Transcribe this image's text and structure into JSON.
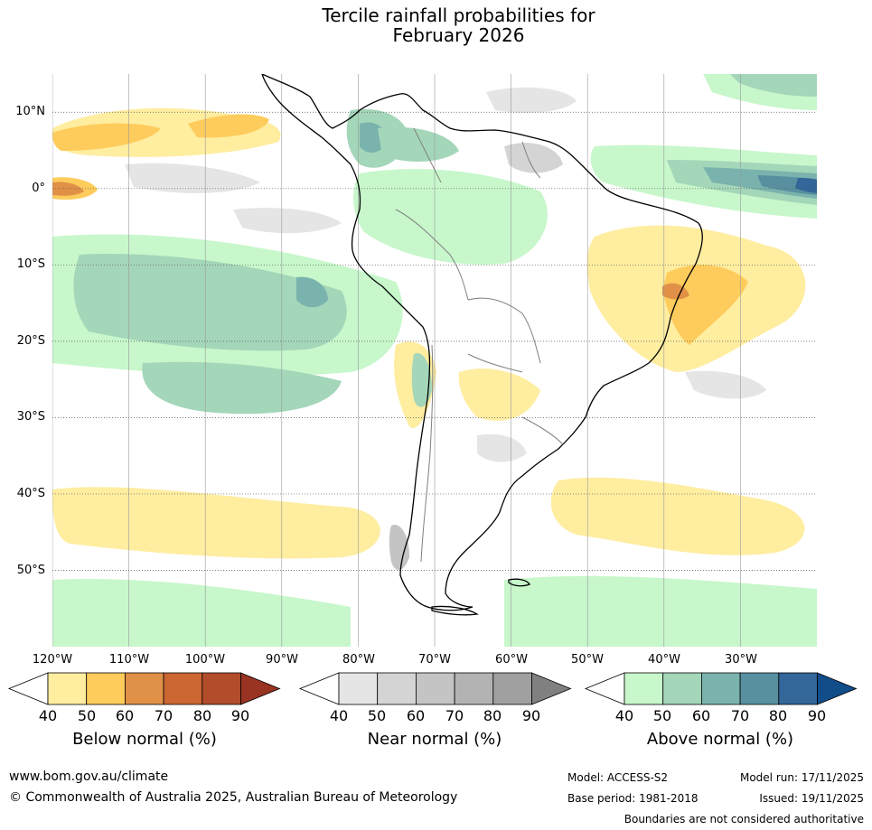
{
  "title": {
    "line1": "Tercile rainfall probabilities for",
    "line2": "February 2026"
  },
  "axes": {
    "latitudes": [
      {
        "label": "10°N",
        "value": 10
      },
      {
        "label": "0°",
        "value": 0
      },
      {
        "label": "10°S",
        "value": -10
      },
      {
        "label": "20°S",
        "value": -20
      },
      {
        "label": "30°S",
        "value": -30
      },
      {
        "label": "40°S",
        "value": -40
      },
      {
        "label": "50°S",
        "value": -50
      }
    ],
    "longitudes": [
      {
        "label": "120°W",
        "value": -120
      },
      {
        "label": "110°W",
        "value": -110
      },
      {
        "label": "100°W",
        "value": -100
      },
      {
        "label": "90°W",
        "value": -90
      },
      {
        "label": "80°W",
        "value": -80
      },
      {
        "label": "70°W",
        "value": -70
      },
      {
        "label": "60°W",
        "value": -60
      },
      {
        "label": "50°W",
        "value": -50
      },
      {
        "label": "40°W",
        "value": -40
      },
      {
        "label": "30°W",
        "value": -30
      }
    ],
    "lon_range": [
      -120,
      -20
    ],
    "lat_range": [
      -60,
      15
    ]
  },
  "colorbars": {
    "below": {
      "title": "Below normal (%)",
      "ticks": [
        "40",
        "50",
        "60",
        "70",
        "80",
        "90"
      ],
      "colors": [
        "#ffffff",
        "#ffeda0",
        "#fecc5c",
        "#e09147",
        "#cc6633",
        "#b24d2c",
        "#993322"
      ]
    },
    "near": {
      "title": "Near normal (%)",
      "ticks": [
        "40",
        "50",
        "60",
        "70",
        "80",
        "90"
      ],
      "colors": [
        "#ffffff",
        "#e5e5e5",
        "#d4d4d4",
        "#c4c4c4",
        "#b3b3b3",
        "#a0a0a0",
        "#808080"
      ]
    },
    "above": {
      "title": "Above normal (%)",
      "ticks": [
        "40",
        "50",
        "60",
        "70",
        "80",
        "90"
      ],
      "colors": [
        "#ffffff",
        "#c7f7cb",
        "#a4d6b9",
        "#7ab3ad",
        "#5990a0",
        "#336699",
        "#114d88"
      ]
    }
  },
  "footer": {
    "website": "www.bom.gov.au/climate",
    "copyright": "© Commonwealth of Australia 2025, Australian Bureau of Meteorology",
    "model": "Model: ACCESS-S2",
    "model_run": "Model run: 17/11/2025",
    "base_period": "Base period: 1981-2018",
    "issued": "Issued: 19/11/2025",
    "disclaimer": "Boundaries are not considered authoritative"
  }
}
